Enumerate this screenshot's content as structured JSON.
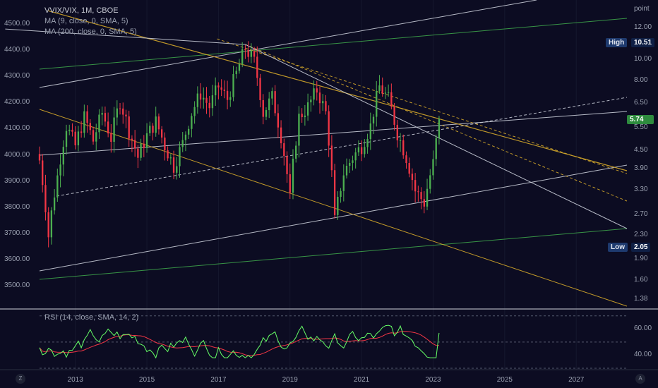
{
  "legend": {
    "symbol": "VVIX/VIX, 1M, CBOE",
    "ma_fast": "MA (9, close, 0, SMA, 5)",
    "ma_slow": "MA (200, close, 0, SMA, 5)",
    "rsi": "RSI (14, close, SMA, 14, 2)"
  },
  "right_scale": {
    "unit": "point",
    "labels": [
      "12.00",
      "10.00",
      "8.00",
      "6.50",
      "5.50",
      "4.50",
      "3.90",
      "3.30",
      "2.70",
      "2.30",
      "1.90",
      "1.60",
      "1.38"
    ]
  },
  "left_scale": {
    "labels": [
      "4500.00",
      "4400.00",
      "4300.00",
      "4200.00",
      "4100.00",
      "4000.00",
      "3900.00",
      "3800.00",
      "3700.00",
      "3600.00",
      "3500.00"
    ]
  },
  "rsi_scale": {
    "labels": [
      "60.00",
      "40.00"
    ]
  },
  "badges": {
    "high_label": "High",
    "high_value": "10.51",
    "low_label": "Low",
    "low_value": "2.05",
    "last_value": "5.74"
  },
  "corners": {
    "left": "Z",
    "right": "A"
  },
  "colors": {
    "background": "#0c0c22",
    "up": "#4caf50",
    "down": "#f23645",
    "rsi": "#66ff66",
    "rsi_ma": "#f23645",
    "trend_white": "#c9cdd8",
    "trend_green": "#3da34a",
    "trend_yellow": "#d4a82a"
  },
  "chart_data": {
    "type": "candlestick",
    "interval": "1M",
    "x_axis": {
      "tick_labels": [
        "2013",
        "2015",
        "2017",
        "2019",
        "2021",
        "2023",
        "2025",
        "2027"
      ]
    },
    "y_scale": "log",
    "y_range": [
      1.38,
      14.5
    ],
    "high": 10.51,
    "low": 2.05,
    "last": 5.74,
    "close_path": [
      {
        "x": "2012-01",
        "y": 4.3
      },
      {
        "x": "2012-04",
        "y": 2.4
      },
      {
        "x": "2012-07",
        "y": 3.8
      },
      {
        "x": "2012-10",
        "y": 5.6
      },
      {
        "x": "2013-01",
        "y": 4.8
      },
      {
        "x": "2013-04",
        "y": 6.0
      },
      {
        "x": "2013-07",
        "y": 5.0
      },
      {
        "x": "2013-10",
        "y": 6.2
      },
      {
        "x": "2014-01",
        "y": 5.1
      },
      {
        "x": "2014-04",
        "y": 6.8
      },
      {
        "x": "2014-07",
        "y": 5.4
      },
      {
        "x": "2014-10",
        "y": 4.4
      },
      {
        "x": "2015-01",
        "y": 5.2
      },
      {
        "x": "2015-04",
        "y": 5.8
      },
      {
        "x": "2015-07",
        "y": 4.8
      },
      {
        "x": "2015-10",
        "y": 4.1
      },
      {
        "x": "2016-01",
        "y": 4.9
      },
      {
        "x": "2016-04",
        "y": 6.2
      },
      {
        "x": "2016-07",
        "y": 7.2
      },
      {
        "x": "2016-10",
        "y": 6.5
      },
      {
        "x": "2017-01",
        "y": 7.6
      },
      {
        "x": "2017-04",
        "y": 6.9
      },
      {
        "x": "2017-07",
        "y": 8.4
      },
      {
        "x": "2017-10",
        "y": 10.2
      },
      {
        "x": "2018-01",
        "y": 9.2
      },
      {
        "x": "2018-04",
        "y": 6.2
      },
      {
        "x": "2018-07",
        "y": 7.0
      },
      {
        "x": "2018-10",
        "y": 5.2
      },
      {
        "x": "2019-01",
        "y": 3.2
      },
      {
        "x": "2019-04",
        "y": 6.0
      },
      {
        "x": "2019-07",
        "y": 6.5
      },
      {
        "x": "2019-10",
        "y": 7.4
      },
      {
        "x": "2020-01",
        "y": 6.2
      },
      {
        "x": "2020-04",
        "y": 2.7
      },
      {
        "x": "2020-07",
        "y": 3.9
      },
      {
        "x": "2020-10",
        "y": 4.4
      },
      {
        "x": "2021-01",
        "y": 4.8
      },
      {
        "x": "2021-04",
        "y": 5.6
      },
      {
        "x": "2021-07",
        "y": 7.6
      },
      {
        "x": "2021-10",
        "y": 6.9
      },
      {
        "x": "2022-01",
        "y": 5.3
      },
      {
        "x": "2022-04",
        "y": 4.4
      },
      {
        "x": "2022-07",
        "y": 3.4
      },
      {
        "x": "2022-10",
        "y": 3.1
      },
      {
        "x": "2023-01",
        "y": 4.2
      },
      {
        "x": "2023-03",
        "y": 5.74
      }
    ],
    "rsi": {
      "levels": [
        70,
        50,
        30
      ],
      "y_range": [
        30,
        72
      ],
      "last": 57
    }
  }
}
